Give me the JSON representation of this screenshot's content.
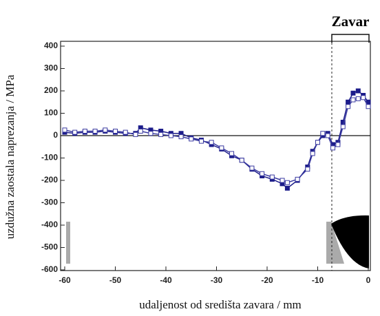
{
  "chart_data": {
    "type": "line",
    "annotation": "Zavar",
    "xlabel": "udaljenost od središta zavara / mm",
    "ylabel": "uzdužna zaostala naprezanja / MPa",
    "x": [
      -60,
      -58,
      -56,
      -54,
      -52,
      -50,
      -48,
      -46,
      -45,
      -43,
      -41,
      -39,
      -37,
      -35,
      -33,
      -31,
      -29,
      -27,
      -25,
      -23,
      -21,
      -19,
      -17,
      -16,
      -14,
      -12,
      -11,
      -10,
      -9,
      -8,
      -7,
      -6,
      -5,
      -4,
      -3,
      -2,
      -1,
      0
    ],
    "series": [
      {
        "color": "#1c1c8a",
        "marker": "filled",
        "values": [
          15,
          10,
          15,
          15,
          20,
          15,
          10,
          10,
          35,
          25,
          20,
          10,
          10,
          -10,
          -20,
          -40,
          -60,
          -90,
          -110,
          -150,
          -180,
          -195,
          -215,
          -235,
          -200,
          -140,
          -70,
          -30,
          0,
          10,
          -40,
          -30,
          60,
          150,
          190,
          200,
          180,
          150
        ]
      },
      {
        "color": "#3a3aa0",
        "marker": "open",
        "values": [
          25,
          15,
          20,
          20,
          25,
          20,
          15,
          5,
          20,
          10,
          5,
          0,
          -5,
          -15,
          -25,
          -30,
          -55,
          -80,
          -110,
          -145,
          -170,
          -185,
          -200,
          -210,
          -195,
          -150,
          -80,
          -30,
          10,
          0,
          -55,
          -40,
          40,
          130,
          160,
          165,
          170,
          130
        ]
      }
    ],
    "xlim": [
      -60,
      0
    ],
    "xticks": [
      -60,
      -50,
      -40,
      -30,
      -20,
      -10,
      0
    ],
    "ylim": [
      -600,
      400
    ],
    "yticks": [
      -600,
      -500,
      -400,
      -300,
      -200,
      -100,
      0,
      100,
      200,
      300,
      400
    ]
  }
}
